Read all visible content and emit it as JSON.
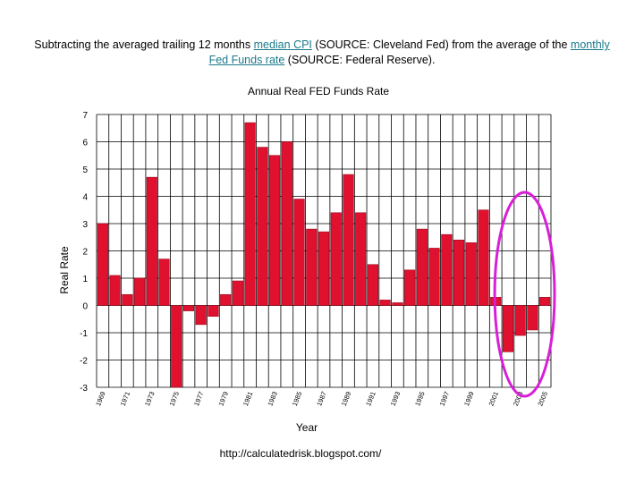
{
  "caption": {
    "p1": "Subtracting the averaged trailing 12 months ",
    "link1": "median CPI",
    "p2": " (SOURCE: Cleveland Fed) from the average of the ",
    "link2": "monthly Fed Funds rate",
    "p3": " (SOURCE: Federal Reserve)."
  },
  "source_url": "http://calculatedrisk.blogspot.com/",
  "colors": {
    "bar": "#e0102f",
    "bar_edge": "#9c0a20",
    "highlight": "#d81fd8",
    "grid": "#000000",
    "link": "#1a7a8a"
  },
  "chart_data": {
    "type": "bar",
    "title": "Annual Real FED Funds Rate",
    "xlabel": "Year",
    "ylabel": "Real Rate",
    "ylim": [
      -3,
      7
    ],
    "yticks": [
      7,
      6,
      5,
      4,
      3,
      2,
      1,
      0,
      -1,
      -2,
      -3
    ],
    "grid": true,
    "categories": [
      "1969",
      "1970",
      "1971",
      "1972",
      "1973",
      "1974",
      "1975",
      "1976",
      "1977",
      "1978",
      "1979",
      "1980",
      "1981",
      "1982",
      "1983",
      "1984",
      "1985",
      "1986",
      "1987",
      "1988",
      "1989",
      "1990",
      "1991",
      "1992",
      "1993",
      "1994",
      "1995",
      "1996",
      "1997",
      "1998",
      "1999",
      "2000",
      "2001",
      "2002",
      "2003",
      "2004",
      "2005"
    ],
    "xtick_labels": [
      "1969",
      "1971",
      "1973",
      "1975",
      "1977",
      "1979",
      "1981",
      "1983",
      "1985",
      "1987",
      "1989",
      "1991",
      "1993",
      "1995",
      "1997",
      "1999",
      "2001",
      "2003",
      "2005"
    ],
    "values": [
      3.0,
      1.1,
      0.4,
      1.0,
      4.7,
      1.7,
      -3.0,
      -0.2,
      -0.7,
      -0.4,
      0.4,
      0.9,
      6.7,
      5.8,
      5.5,
      6.0,
      3.9,
      2.8,
      2.7,
      3.4,
      4.8,
      3.4,
      1.5,
      0.2,
      0.1,
      1.3,
      2.8,
      2.1,
      2.6,
      2.4,
      2.3,
      3.5,
      0.3,
      -1.7,
      -1.1,
      -0.9,
      0.3
    ],
    "annotation": {
      "type": "ellipse",
      "highlight_categories": [
        "2002",
        "2003",
        "2004",
        "2005"
      ]
    }
  }
}
